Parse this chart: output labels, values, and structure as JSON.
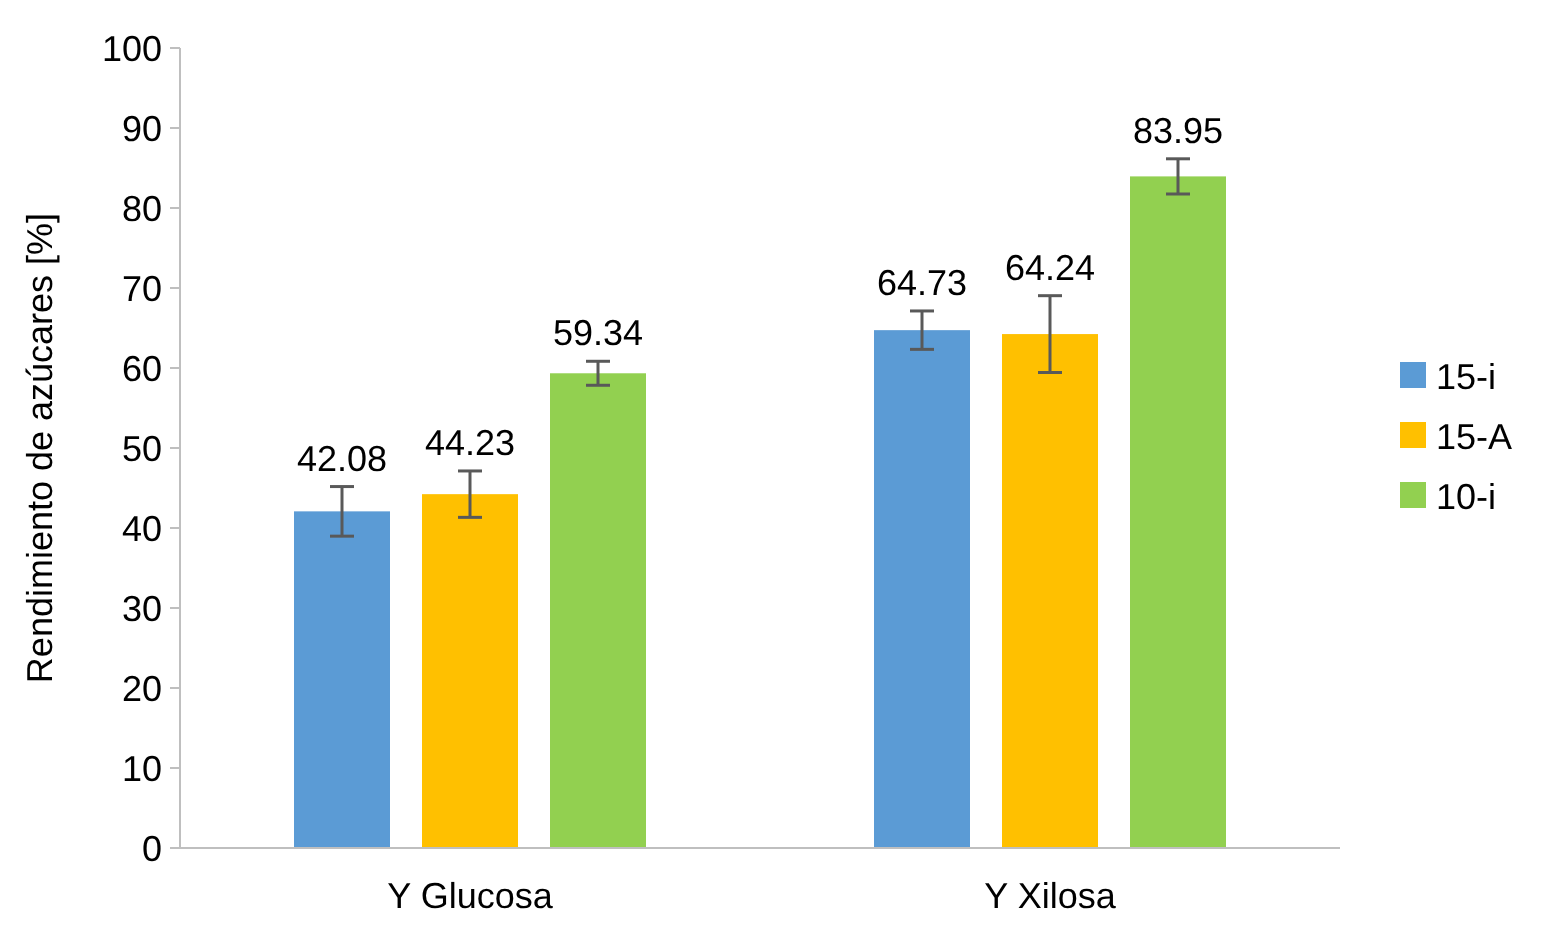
{
  "chart_data": {
    "type": "bar",
    "ylabel": "Rendimiento de azúcares [%]",
    "categories": [
      "Y Glucosa",
      "Y Xilosa"
    ],
    "series": [
      {
        "name": "15-i",
        "color": "#5b9bd5",
        "values": [
          42.08,
          64.73
        ],
        "errors": [
          3.1,
          2.4
        ]
      },
      {
        "name": "15-A",
        "color": "#ffc000",
        "values": [
          44.23,
          64.24
        ],
        "errors": [
          2.9,
          4.8
        ]
      },
      {
        "name": "10-i",
        "color": "#92d050",
        "values": [
          59.34,
          83.95
        ],
        "errors": [
          1.5,
          2.2
        ]
      }
    ],
    "ylim": [
      0,
      100
    ],
    "yticks": [
      0,
      10,
      20,
      30,
      40,
      50,
      60,
      70,
      80,
      90,
      100
    ],
    "data_labels": true,
    "legend": "right",
    "grid": false
  }
}
